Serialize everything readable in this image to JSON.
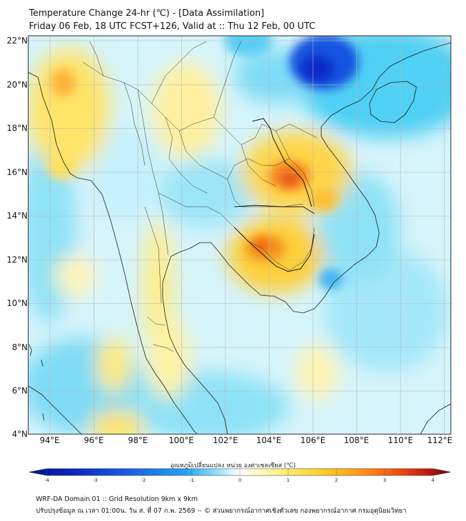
{
  "header": {
    "title": "Temperature Change 24-hr (℃) - [Data Assimilation]",
    "subtitle": "Friday 06 Feb, 18 UTC FCST+126, Valid at :: Thu 12 Feb, 00 UTC"
  },
  "axes": {
    "lat_labels": [
      "22°N",
      "20°N",
      "18°N",
      "16°N",
      "14°N",
      "12°N",
      "10°N",
      "8°N",
      "6°N",
      "4°N"
    ],
    "lon_labels": [
      "94°E",
      "96°E",
      "98°E",
      "100°E",
      "102°E",
      "104°E",
      "106°E",
      "108°E",
      "110°E",
      "112°E"
    ]
  },
  "colorbar": {
    "title": "อุณหภูมิเปลี่ยนแปลง หน่วย องศาเซลเซียส (℃)",
    "ticks": [
      "-4",
      "-3",
      "-2",
      "-1",
      "0",
      "1",
      "2",
      "3",
      "4"
    ],
    "colors": [
      "#000f8f",
      "#0a2cc8",
      "#1a64e6",
      "#26a2f0",
      "#6fd3f5",
      "#c8f0fb",
      "#ffffff",
      "#fff7c0",
      "#ffe55c",
      "#ffc21f",
      "#ff8c1a",
      "#f04a12",
      "#b8160e",
      "#6e0000"
    ]
  },
  "footer": {
    "line1": "WRF-DA Domain 01 :: Grid Resolution 9km x 9km",
    "line2": "ปรับปรุงข้อมูล ณ เวลา 01:00น. วัน ส. ที่ 07 ก.พ. 2569 -- © ส่วนพยากรณ์อากาศเชิงตัวเลข กองพยากรณ์อากาศ กรมอุตุนิยมวิทยา"
  }
}
